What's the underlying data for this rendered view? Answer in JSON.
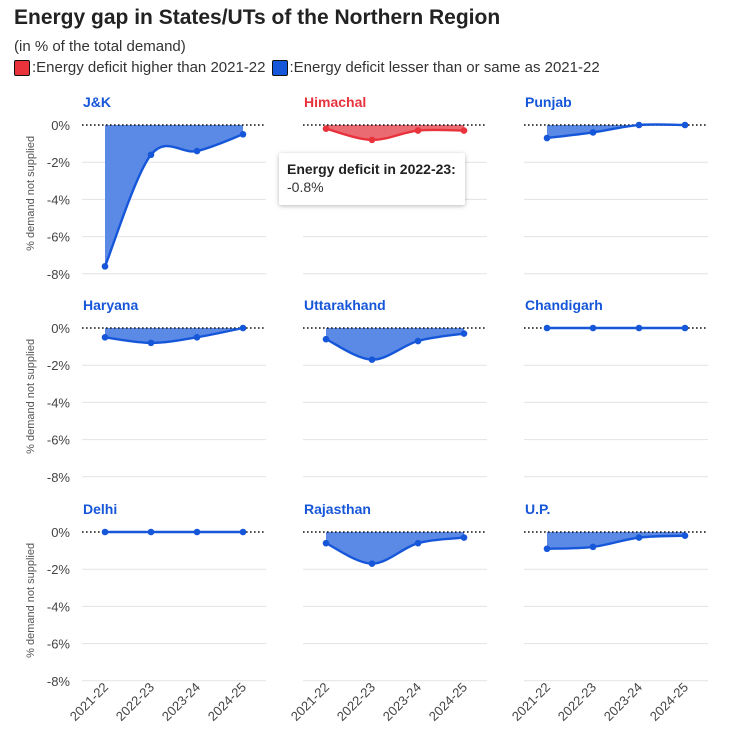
{
  "title": "Energy gap in States/UTs of the Northern Region",
  "subtitle": "(in % of the total demand)",
  "legend": {
    "higher_marker": ":",
    "higher_label": "Energy deficit higher than 2021-22",
    "lesser_marker": ":",
    "lesser_label": "Energy deficit lesser than or same as 2021-22"
  },
  "colors": {
    "higher": "#e8323c",
    "higher_fill": "#eb6b73",
    "lesser": "#1656d9",
    "lesser_fill": "#5b8ae6",
    "grid": "#e3e3e3",
    "zero_line": "#111111"
  },
  "tooltip": {
    "title": "Energy deficit in 2022-23:",
    "value": "-0.8%"
  },
  "chart_data": {
    "type": "area",
    "x": [
      "2021-22",
      "2022-23",
      "2023-24",
      "2024-25"
    ],
    "ylabel": "% demand not supplied",
    "ylim": [
      -8,
      0
    ],
    "yticks": [
      0,
      -2,
      -4,
      -6,
      -8
    ],
    "ytick_labels": [
      "0%",
      "-2%",
      "-4%",
      "-6%",
      "-8%"
    ],
    "grid": true,
    "series": [
      {
        "name": "J&K",
        "values": [
          -7.6,
          -1.6,
          -1.4,
          -0.5
        ],
        "category": "lesser"
      },
      {
        "name": "Himachal",
        "values": [
          -0.2,
          -0.8,
          -0.3,
          -0.3
        ],
        "category": "higher"
      },
      {
        "name": "Punjab",
        "values": [
          -0.7,
          -0.4,
          0.0,
          0.0
        ],
        "category": "lesser"
      },
      {
        "name": "Haryana",
        "values": [
          -0.5,
          -0.8,
          -0.5,
          0.0
        ],
        "category": "lesser"
      },
      {
        "name": "Uttarakhand",
        "values": [
          -0.6,
          -1.7,
          -0.7,
          -0.3
        ],
        "category": "lesser"
      },
      {
        "name": "Chandigarh",
        "values": [
          0.0,
          0.0,
          0.0,
          0.0
        ],
        "category": "lesser"
      },
      {
        "name": "Delhi",
        "values": [
          0.0,
          0.0,
          0.0,
          0.0
        ],
        "category": "lesser"
      },
      {
        "name": "Rajasthan",
        "values": [
          -0.6,
          -1.7,
          -0.6,
          -0.3
        ],
        "category": "lesser"
      },
      {
        "name": "U.P.",
        "values": [
          -0.9,
          -0.8,
          -0.3,
          -0.2
        ],
        "category": "lesser"
      }
    ]
  }
}
